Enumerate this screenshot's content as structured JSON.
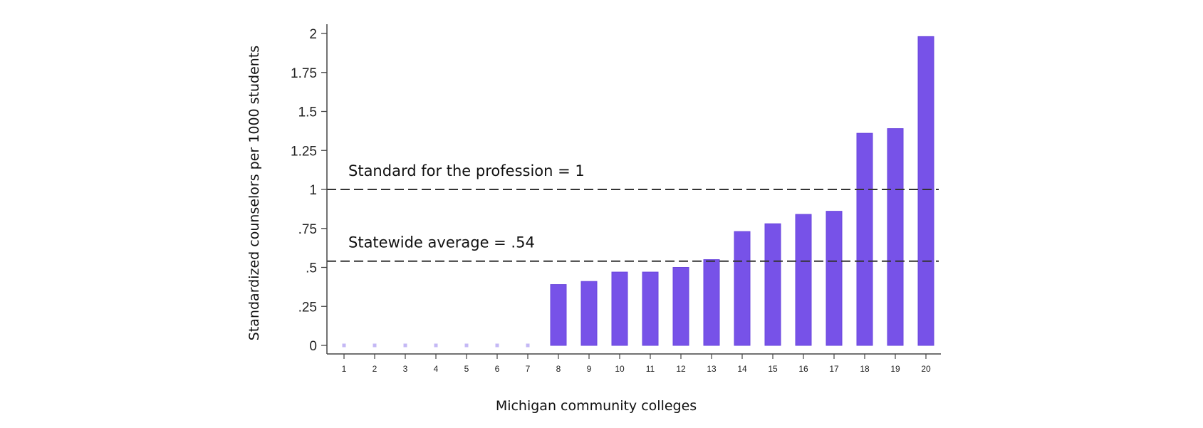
{
  "chart_data": {
    "type": "bar",
    "xlabel": "Michigan community colleges",
    "ylabel": "Standardized counselors per 1000 students",
    "ylim": [
      0,
      2
    ],
    "yticks": [
      {
        "value": 0,
        "label": "0"
      },
      {
        "value": 0.25,
        "label": ".25"
      },
      {
        "value": 0.5,
        "label": ".5"
      },
      {
        "value": 0.75,
        "label": ".75"
      },
      {
        "value": 1,
        "label": "1"
      },
      {
        "value": 1.25,
        "label": "1.25"
      },
      {
        "value": 1.5,
        "label": "1.5"
      },
      {
        "value": 1.75,
        "label": "1.75"
      },
      {
        "value": 2,
        "label": "2"
      }
    ],
    "categories": [
      "1",
      "2",
      "3",
      "4",
      "5",
      "6",
      "7",
      "8",
      "9",
      "10",
      "11",
      "12",
      "13",
      "14",
      "15",
      "16",
      "17",
      "18",
      "19",
      "20"
    ],
    "values": [
      0,
      0,
      0,
      0,
      0,
      0,
      0,
      0.39,
      0.41,
      0.47,
      0.47,
      0.5,
      0.55,
      0.73,
      0.78,
      0.84,
      0.86,
      1.36,
      1.39,
      1.98
    ],
    "reference_lines": [
      {
        "value": 1,
        "label": "Standard for the profession = 1"
      },
      {
        "value": 0.54,
        "label": "Statewide average = .54"
      }
    ],
    "bar_color": "#7752e8",
    "zero_marker_color": "#c4b8f5",
    "grid": false,
    "legend": "none"
  }
}
